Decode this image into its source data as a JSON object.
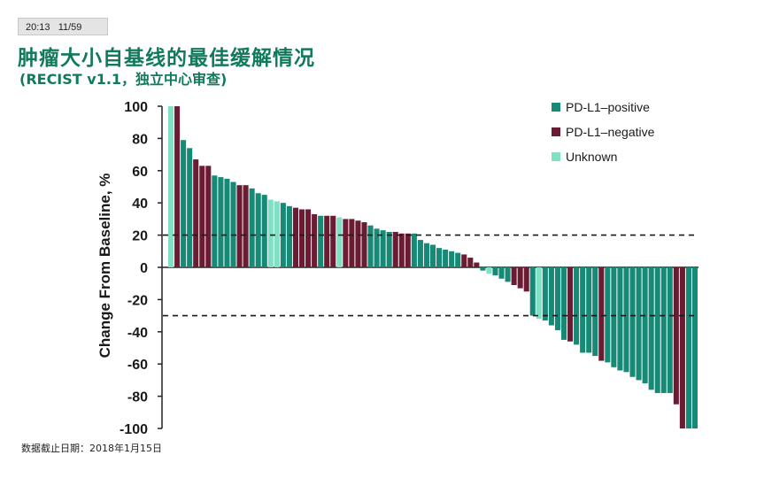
{
  "header": {
    "timestamp": "20:13",
    "page_counter": "11/59",
    "title": "肿瘤大小自基线的最佳缓解情况",
    "subtitle": "(RECIST v1.1，独立中心审查)"
  },
  "footnote": "数据截止日期：2018年1月15日",
  "colors": {
    "positive": "#168a76",
    "negative": "#6b1c33",
    "unknown": "#7fe0c3",
    "title": "#127a5c"
  },
  "chart_data": {
    "type": "bar",
    "ylabel": "Change From Baseline, %",
    "ylim": [
      -100,
      100
    ],
    "yticks": [
      100,
      80,
      60,
      40,
      20,
      0,
      -20,
      -40,
      -60,
      -80,
      -100
    ],
    "reference_lines": [
      20,
      -30
    ],
    "legend": {
      "position": "top-right",
      "entries": [
        {
          "key": "P",
          "label": "PD-L1–positive"
        },
        {
          "key": "N",
          "label": "PD-L1–negative"
        },
        {
          "key": "U",
          "label": "Unknown"
        }
      ]
    },
    "series_key": [
      "U",
      "N",
      "P",
      "P",
      "N",
      "N",
      "N",
      "P",
      "P",
      "P",
      "P",
      "N",
      "N",
      "P",
      "P",
      "P",
      "U",
      "U",
      "P",
      "P",
      "N",
      "N",
      "N",
      "N",
      "P",
      "N",
      "N",
      "U",
      "N",
      "N",
      "N",
      "N",
      "P",
      "P",
      "P",
      "P",
      "N",
      "N",
      "N",
      "P",
      "P",
      "P",
      "P",
      "P",
      "P",
      "P",
      "P",
      "N",
      "N",
      "N",
      "P",
      "U",
      "P",
      "P",
      "P",
      "N",
      "N",
      "N",
      "P",
      "U",
      "P",
      "P",
      "P",
      "P",
      "N",
      "P",
      "P",
      "P",
      "P",
      "N",
      "P",
      "P",
      "P",
      "P",
      "P",
      "P",
      "P",
      "P",
      "P",
      "P",
      "P",
      "N",
      "N",
      "P",
      "P"
    ],
    "values": [
      100,
      100,
      79,
      74,
      67,
      63,
      63,
      57,
      56,
      55,
      53,
      51,
      51,
      49,
      46,
      45,
      42,
      41,
      40,
      38,
      37,
      36,
      36,
      33,
      32,
      32,
      32,
      31,
      30,
      30,
      29,
      28,
      26,
      24,
      23,
      22,
      22,
      21,
      21,
      21,
      17,
      15,
      14,
      12,
      11,
      10,
      9,
      8,
      6,
      3,
      -2,
      -4,
      -5,
      -7,
      -9,
      -11,
      -13,
      -15,
      -30,
      -32,
      -33,
      -36,
      -39,
      -45,
      -46,
      -48,
      -53,
      -53,
      -55,
      -58,
      -59,
      -62,
      -64,
      -65,
      -68,
      -70,
      -72,
      -76,
      -78,
      -78,
      -78,
      -85,
      -100,
      -100,
      -100
    ]
  }
}
